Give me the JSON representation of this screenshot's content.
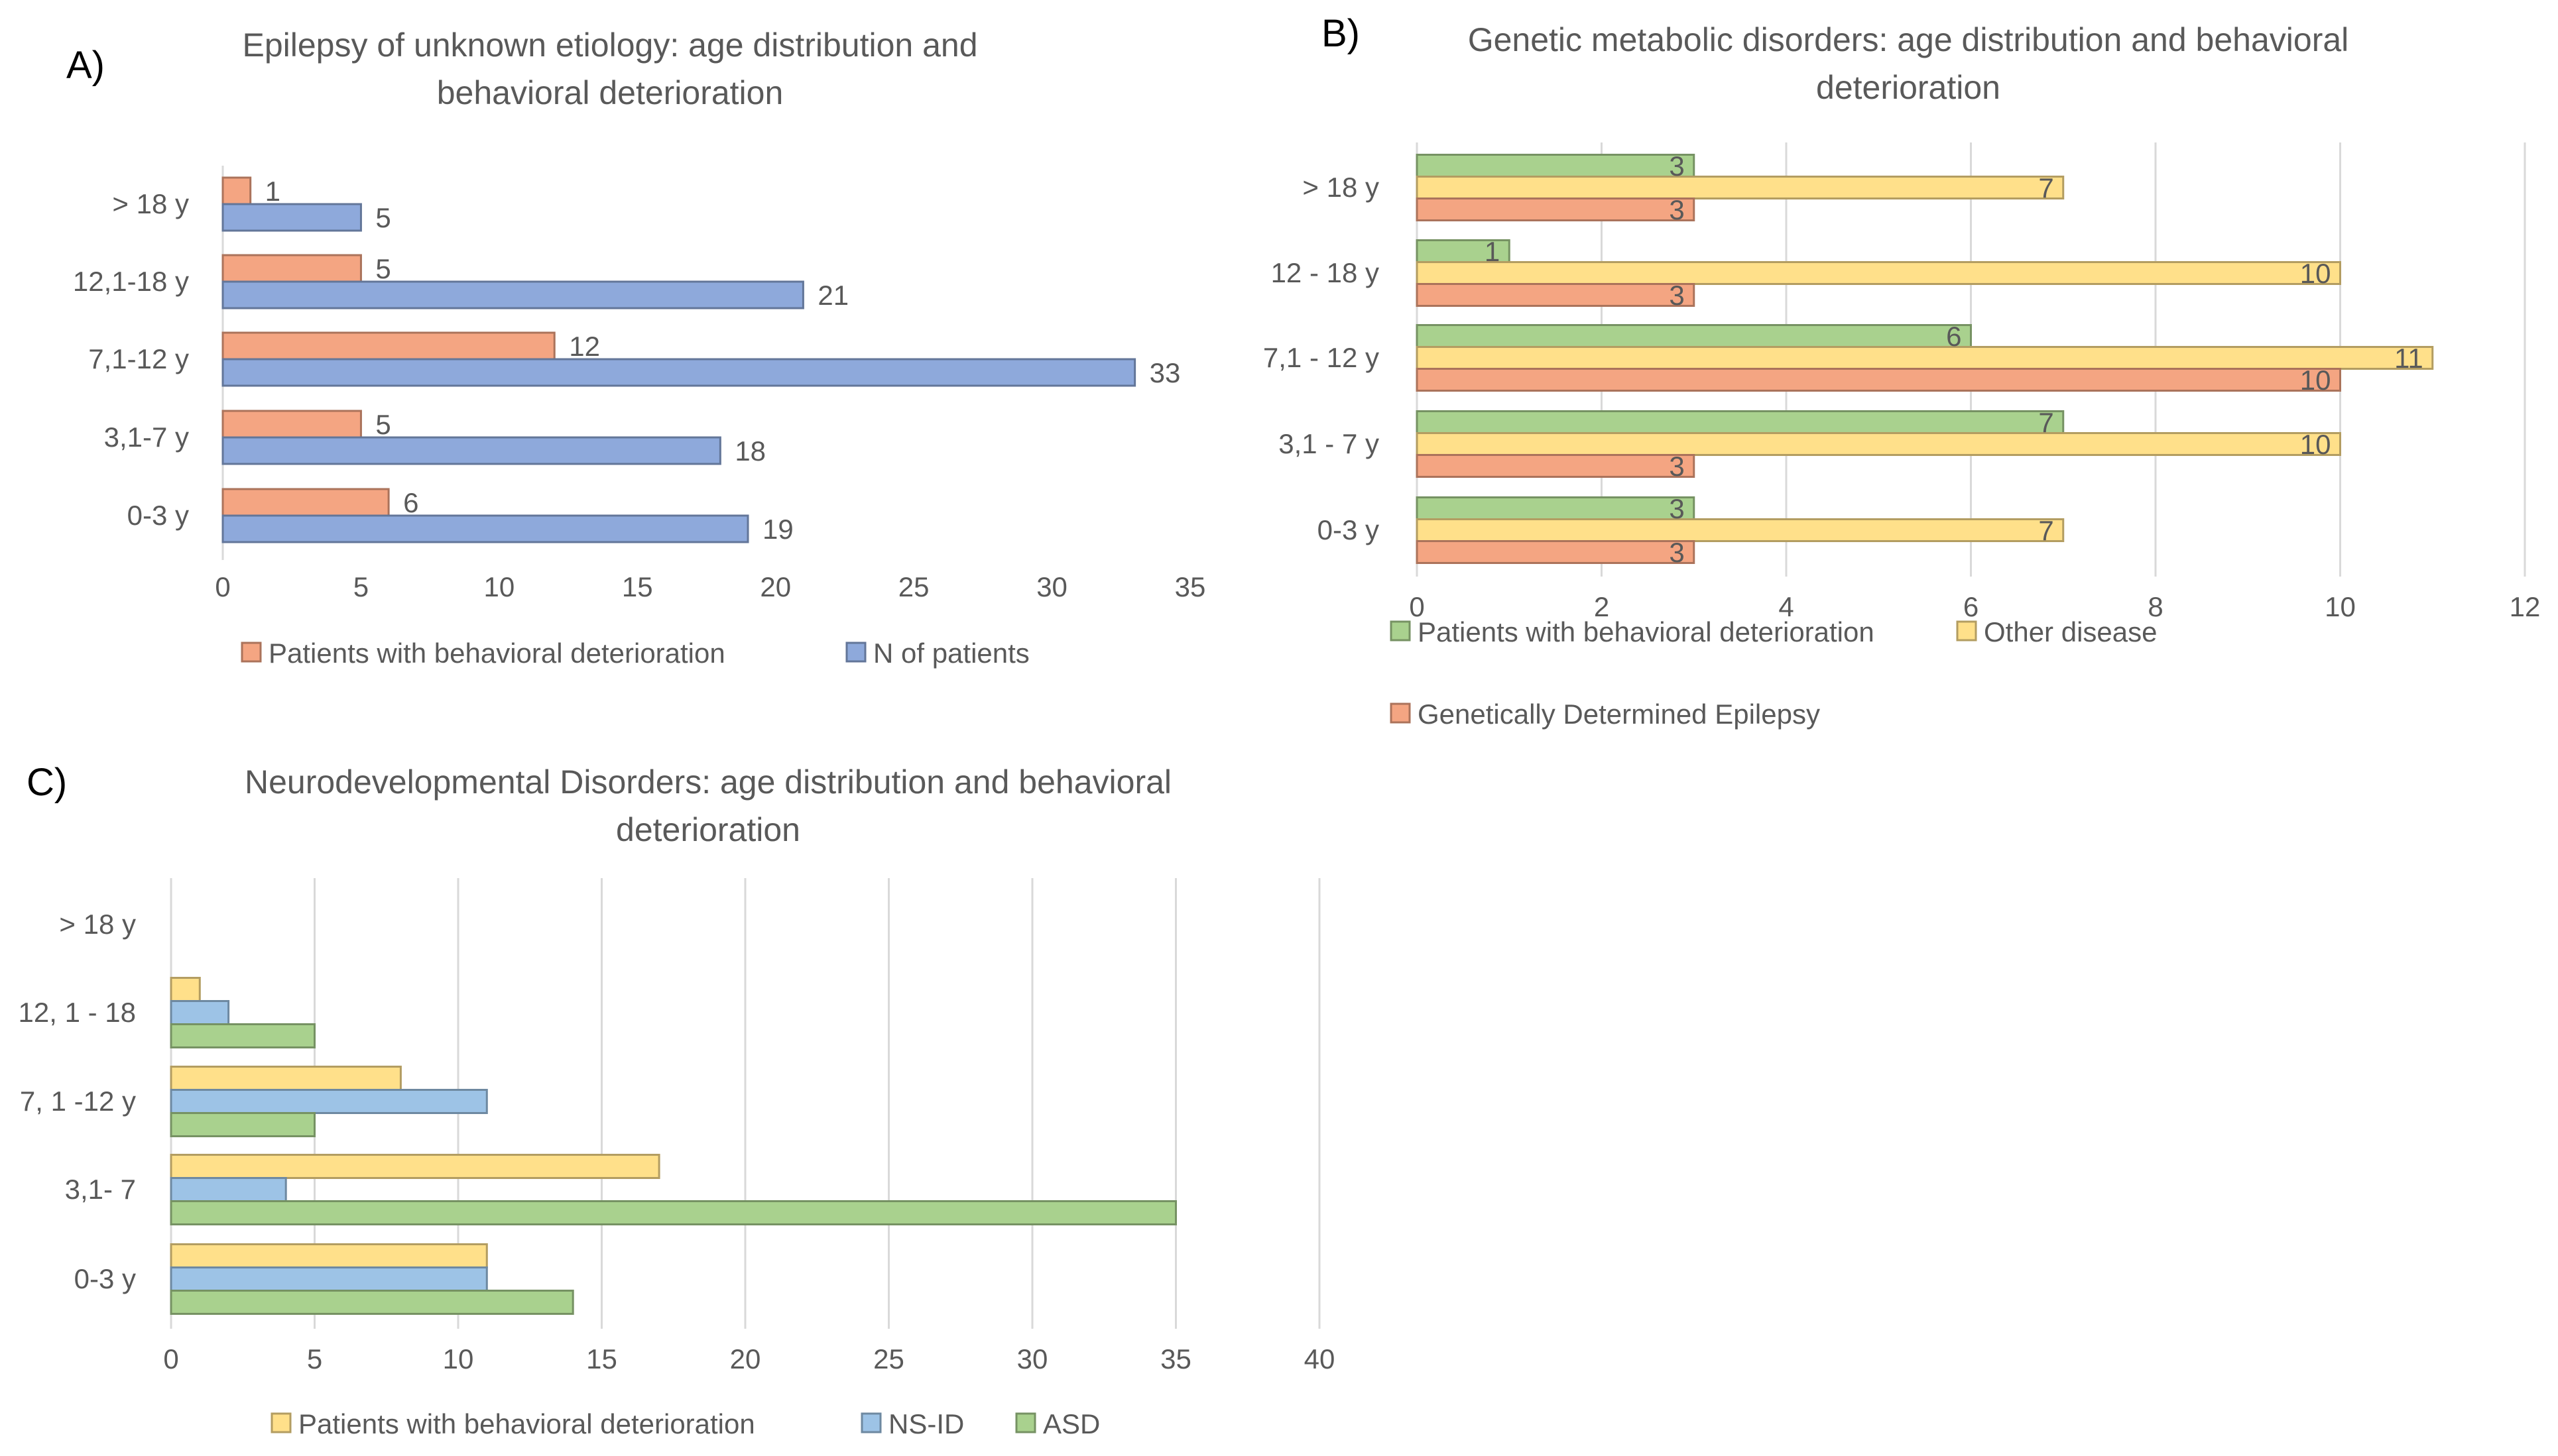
{
  "chart_data": [
    {
      "panel": "A)",
      "type": "bar",
      "orientation": "horizontal",
      "title": "Epilepsy of unknown etiology: age distribution and behavioral deterioration",
      "title_lines": [
        "Epilepsy of unknown etiology: age distribution and",
        "behavioral deterioration"
      ],
      "categories": [
        "0-3 y",
        "3,1-7 y",
        "7,1-12 y",
        "12,1-18 y",
        "> 18 y"
      ],
      "series": [
        {
          "name": "Patients with behavioral deterioration",
          "color": "#F4A582",
          "values": [
            6,
            5,
            12,
            5,
            1
          ]
        },
        {
          "name": "N of patients",
          "color": "#8EA9DB",
          "values": [
            19,
            18,
            33,
            21,
            5
          ]
        }
      ],
      "xlim": [
        0,
        35
      ],
      "ticks": [
        0,
        5,
        10,
        15,
        20,
        25,
        30,
        35
      ],
      "grid": false,
      "legend": "bottom"
    },
    {
      "panel": "B)",
      "type": "bar",
      "orientation": "horizontal",
      "title": "Genetic metabolic disorders: age distribution and behavioral deterioration",
      "title_lines": [
        "Genetic metabolic disorders: age distribution and behavioral",
        "deterioration"
      ],
      "categories": [
        "0-3 y",
        "3,1 - 7 y",
        "7,1 - 12 y",
        "12 - 18 y",
        "> 18 y"
      ],
      "series": [
        {
          "name": "Patients with behavioral deterioration",
          "color": "#A9D18E",
          "values": [
            3,
            7,
            6,
            1,
            3
          ]
        },
        {
          "name": "Other disease",
          "color": "#FFE08A",
          "values": [
            7,
            10,
            11,
            10,
            7
          ]
        },
        {
          "name": "Genetically Determined Epilepsy",
          "color": "#F4A582",
          "values": [
            3,
            3,
            10,
            3,
            3
          ]
        }
      ],
      "xlim": [
        0,
        12
      ],
      "ticks": [
        0,
        2,
        4,
        6,
        8,
        10,
        12
      ],
      "grid": true,
      "legend": "bottom"
    },
    {
      "panel": "C)",
      "type": "bar",
      "orientation": "horizontal",
      "title": "Neurodevelopmental Disorders: age distribution and behavioral deterioration",
      "title_lines": [
        "Neurodevelopmental  Disorders: age distribution  and behavioral",
        "deterioration"
      ],
      "categories": [
        "0-3 y",
        "3,1- 7",
        "7, 1 -12 y",
        "12, 1 - 18",
        "> 18 y"
      ],
      "series": [
        {
          "name": "Patients with behavioral deterioration",
          "color": "#FFE08A",
          "values": [
            11,
            17,
            8,
            1,
            0
          ]
        },
        {
          "name": "NS-ID",
          "color": "#9DC3E6",
          "values": [
            11,
            4,
            11,
            2,
            0
          ]
        },
        {
          "name": "ASD",
          "color": "#A9D18E",
          "values": [
            14,
            35,
            5,
            5,
            0
          ]
        }
      ],
      "xlim": [
        0,
        40
      ],
      "ticks": [
        0,
        5,
        10,
        15,
        20,
        25,
        30,
        35,
        40
      ],
      "grid": true,
      "legend": "bottom"
    }
  ]
}
